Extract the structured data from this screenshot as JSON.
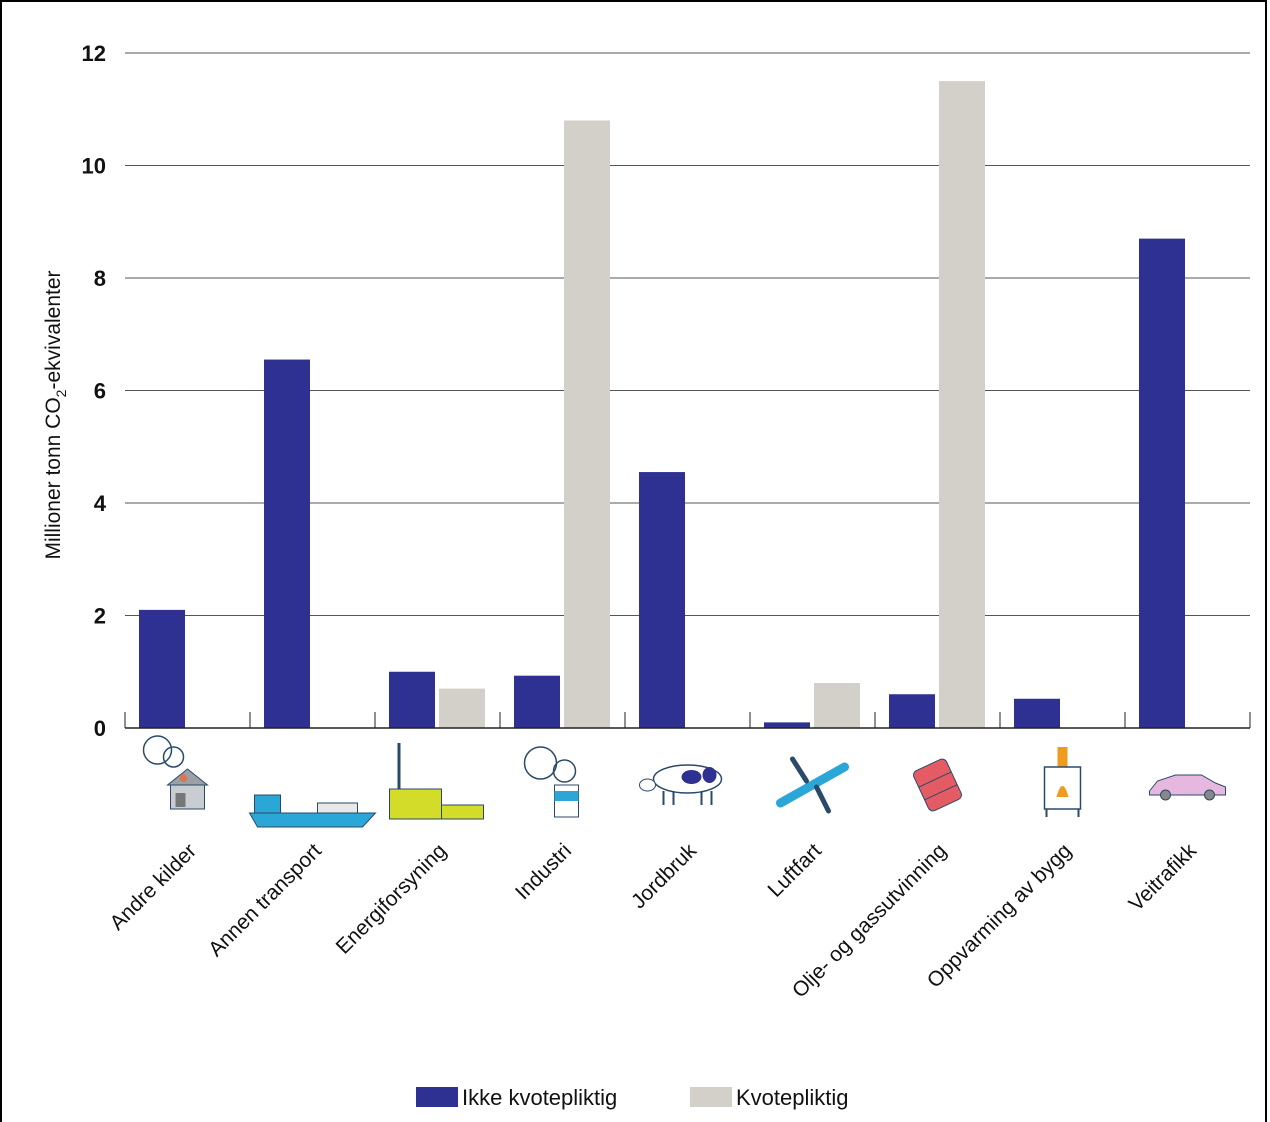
{
  "chart_data": {
    "type": "bar",
    "title": "",
    "xlabel": "",
    "ylabel_prefix": "Millioner tonn CO",
    "ylabel_sub": "2",
    "ylabel_suffix": "-ekvivalenter",
    "ylim": [
      0,
      12
    ],
    "yticks": [
      "0",
      "2",
      "4",
      "6",
      "8",
      "10",
      "12"
    ],
    "grid": true,
    "legend_position": "bottom",
    "categories": [
      "Andre kilder",
      "Annen transport",
      "Energiforsyning",
      "Industri",
      "Jordbruk",
      "Luftfart",
      "Olje- og gassutvinning",
      "Oppvarming av bygg",
      "Veitrafikk"
    ],
    "category_icons": [
      "house-smoke-icon",
      "cargo-ship-icon",
      "power-plant-icon",
      "factory-smoke-icon",
      "cow-icon",
      "airplane-icon",
      "oil-barrel-icon",
      "wood-stove-icon",
      "car-icon"
    ],
    "series": [
      {
        "name": "Ikke kvotepliktig",
        "color": "#2e3192",
        "values": [
          2.1,
          6.55,
          1.0,
          0.93,
          4.55,
          0.1,
          0.6,
          0.52,
          8.7
        ]
      },
      {
        "name": "Kvotepliktig",
        "color": "#d3cfc9",
        "values": [
          0,
          0,
          0.7,
          10.8,
          0,
          0.8,
          11.5,
          0,
          0
        ]
      }
    ]
  }
}
